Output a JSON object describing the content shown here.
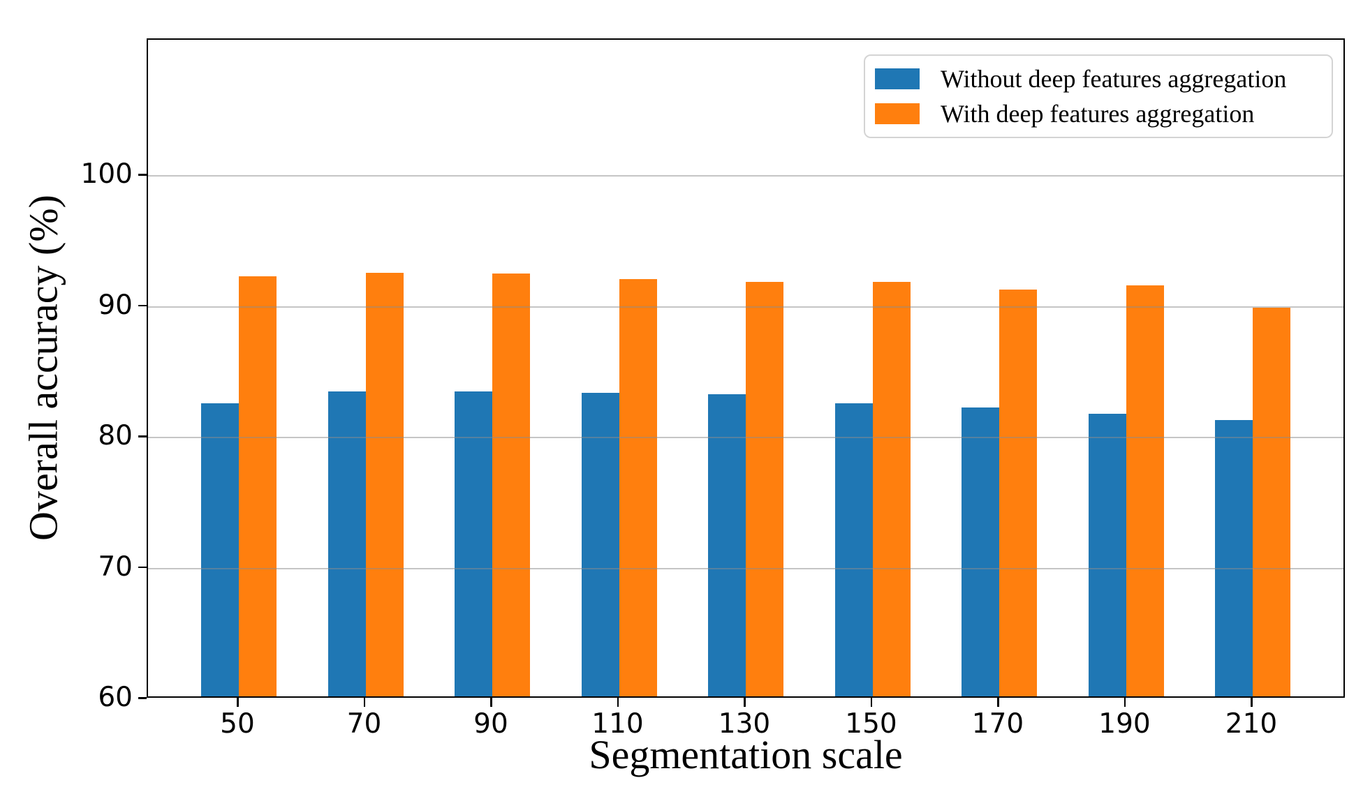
{
  "chart_data": {
    "type": "bar",
    "title": "",
    "xlabel": "Segmentation scale",
    "ylabel": "Overall accuracy (%)",
    "categories": [
      50,
      70,
      90,
      110,
      130,
      150,
      170,
      190,
      210
    ],
    "series": [
      {
        "name": "Without deep features aggregation",
        "color": "#1f77b4",
        "values": [
          82.4,
          83.3,
          83.3,
          83.2,
          83.1,
          82.4,
          82.1,
          81.6,
          81.1
        ]
      },
      {
        "name": "With deep features aggregation",
        "color": "#ff7f0e",
        "values": [
          92.1,
          92.4,
          92.3,
          91.9,
          91.7,
          91.7,
          91.1,
          91.4,
          89.7
        ]
      }
    ],
    "ylim": [
      60,
      110.4
    ],
    "yticks": [
      60,
      70,
      80,
      90,
      100
    ],
    "grid": true,
    "grid_axis": "y",
    "legend_position": "upper right"
  }
}
